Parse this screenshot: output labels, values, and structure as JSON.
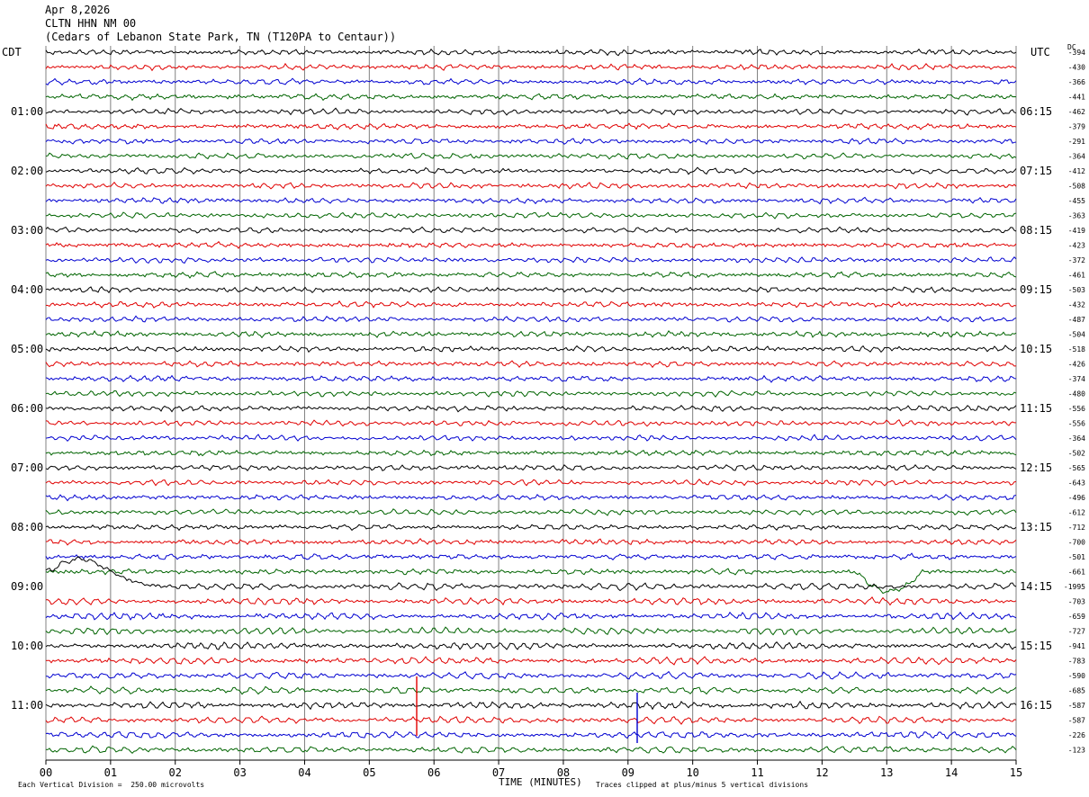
{
  "header": {
    "date": "Apr 8,2026",
    "station": "CLTN HHN NM 00",
    "location": "(Cedars of Lebanon State Park, TN (T120PA to Centaur))"
  },
  "left_tz": "CDT",
  "right_tz": "UTC",
  "dc_label": "DC",
  "footer": {
    "scale_note": "Each Vertical Division =  250.00 microvolts",
    "xlabel": "TIME (MINUTES)",
    "clip_note": "Traces clipped at plus/minus 5 vertical divisions"
  },
  "colors": {
    "trace_cycle": [
      "#000000",
      "#e00000",
      "#0000d0",
      "#006400"
    ],
    "grid": "#808080"
  },
  "chart_data": {
    "type": "line",
    "title": "Apr 8,2026",
    "xlabel": "TIME (MINUTES)",
    "xlim": [
      0,
      15
    ],
    "x_ticks": [
      "00",
      "01",
      "02",
      "03",
      "04",
      "05",
      "06",
      "07",
      "08",
      "09",
      "10",
      "11",
      "12",
      "13",
      "14",
      "15"
    ],
    "rows": 48,
    "left_hour_labels": [
      {
        "row": 4,
        "label": "01:00"
      },
      {
        "row": 8,
        "label": "02:00"
      },
      {
        "row": 12,
        "label": "03:00"
      },
      {
        "row": 16,
        "label": "04:00"
      },
      {
        "row": 20,
        "label": "05:00"
      },
      {
        "row": 24,
        "label": "06:00"
      },
      {
        "row": 28,
        "label": "07:00"
      },
      {
        "row": 32,
        "label": "08:00"
      },
      {
        "row": 36,
        "label": "09:00"
      },
      {
        "row": 40,
        "label": "10:00"
      },
      {
        "row": 44,
        "label": "11:00"
      }
    ],
    "right_hour_labels": [
      {
        "row": 4,
        "label": "06:15"
      },
      {
        "row": 8,
        "label": "07:15"
      },
      {
        "row": 12,
        "label": "08:15"
      },
      {
        "row": 16,
        "label": "09:15"
      },
      {
        "row": 20,
        "label": "10:15"
      },
      {
        "row": 24,
        "label": "11:15"
      },
      {
        "row": 28,
        "label": "12:15"
      },
      {
        "row": 32,
        "label": "13:15"
      },
      {
        "row": 36,
        "label": "14:15"
      },
      {
        "row": 40,
        "label": "15:15"
      },
      {
        "row": 44,
        "label": "16:15"
      }
    ],
    "dc_offsets": [
      "-394",
      "-430",
      "-366",
      "-441",
      "-462",
      "-379",
      "-291",
      "-364",
      "-412",
      "-508",
      "-455",
      "-363",
      "-419",
      "-423",
      "-372",
      "-461",
      "-503",
      "-432",
      "-487",
      "-504",
      "-518",
      "-426",
      "-374",
      "-480",
      "-556",
      "-556",
      "-364",
      "-502",
      "-565",
      "-643",
      "-496",
      "-612",
      "-712",
      "-700",
      "-501",
      "-661",
      "-1995",
      "-703",
      "-659",
      "-727",
      "-941",
      "-783",
      "-590",
      "-685",
      "-587",
      "-587",
      "-226",
      "-123"
    ]
  }
}
